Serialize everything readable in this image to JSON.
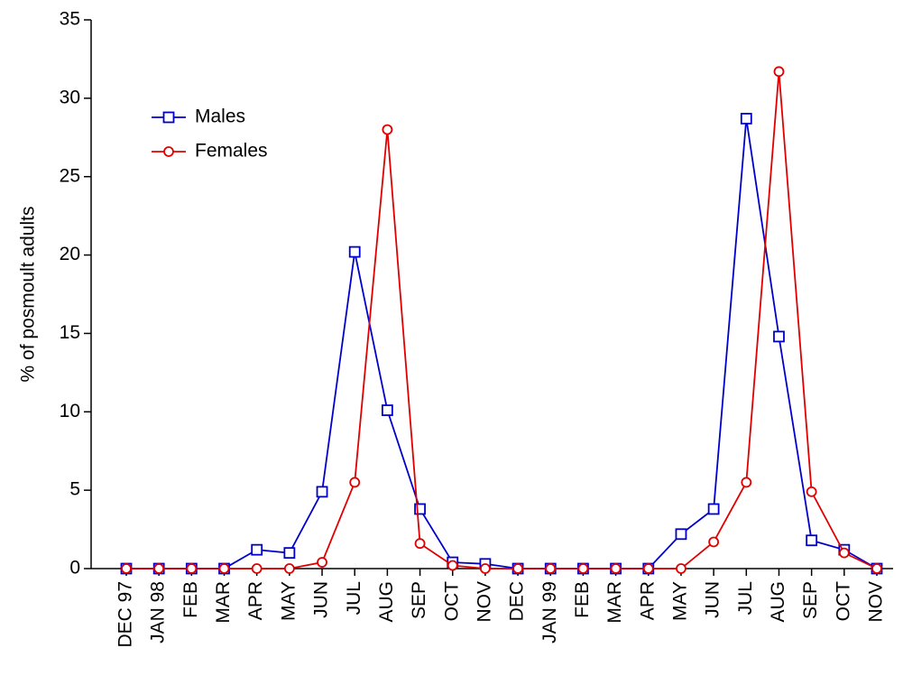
{
  "chart_data": {
    "type": "line",
    "y_label": "% of posmoult adults",
    "categories": [
      "DEC 97",
      "JAN 98",
      "FEB",
      "MAR",
      "APR",
      "MAY",
      "JUN",
      "JUL",
      "AUG",
      "SEP",
      "OCT",
      "NOV",
      "DEC",
      "JAN 99",
      "FEB",
      "MAR",
      "APR",
      "MAY",
      "JUN",
      "JUL",
      "AUG",
      "SEP",
      "OCT",
      "NOV"
    ],
    "series": [
      {
        "name": "Males",
        "color": "#0000cc",
        "marker": "square",
        "values": [
          0,
          0,
          0,
          0,
          1.2,
          1.0,
          4.9,
          20.2,
          10.1,
          3.8,
          0.4,
          0.3,
          0,
          0,
          0,
          0,
          0,
          2.2,
          3.8,
          28.7,
          14.8,
          1.8,
          1.2,
          0
        ]
      },
      {
        "name": "Females",
        "color": "#e00000",
        "marker": "circle",
        "values": [
          0,
          0,
          0,
          0,
          0,
          0,
          0.4,
          5.5,
          28,
          1.6,
          0.2,
          0,
          0,
          0,
          0,
          0,
          0,
          0,
          1.7,
          5.5,
          31.7,
          4.9,
          1.0,
          0
        ]
      }
    ],
    "ylim": [
      0,
      35
    ],
    "yticks": [
      0,
      5,
      10,
      15,
      20,
      25,
      30,
      35
    ]
  }
}
